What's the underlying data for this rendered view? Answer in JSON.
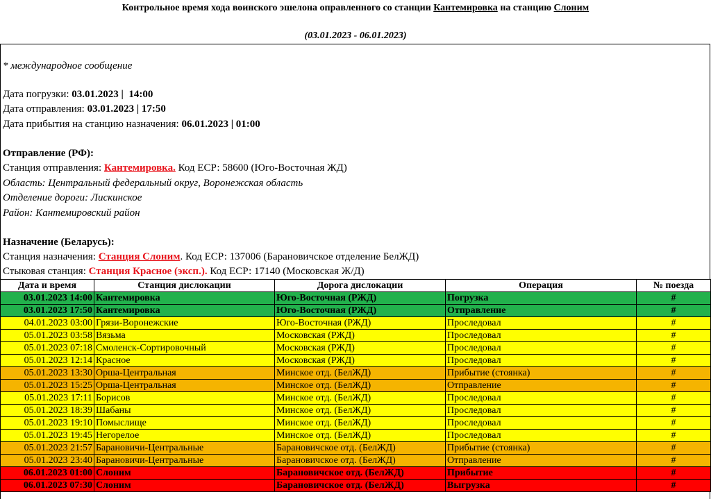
{
  "header": {
    "title_prefix": "Контрольное время хода воинского эшелона оправленного со станции",
    "title_from": "Кантемировка",
    "title_middle": "на станцию",
    "title_to": "Слоним",
    "period": "(03.01.2023 - 06.01.2023)"
  },
  "note": "* международное сообщение",
  "dates": [
    {
      "label": "Дата погрузки:",
      "value": "03.01.2023 |  14:00"
    },
    {
      "label": "Дата отправления:",
      "value": "03.01.2023 | 17:50"
    },
    {
      "label": "Дата прибытия на станцию назначения:",
      "value": "06.01.2023 | 01:00"
    }
  ],
  "departure": {
    "heading": "Отправление (РФ):",
    "station_label": "Станция отправления:",
    "station": "Кантемировка.",
    "code": "Код ЕСР: 58600 (Юго-Восточная ЖД)",
    "region": "Область: Центральный федеральный округ, Воронежская область",
    "division": "Отделение дороги: Лискинское",
    "district": "Район: Кантемировский район"
  },
  "destination": {
    "heading": "Назначение (Беларусь):",
    "station_label": "Станция назначения:",
    "station": "Станция Слоним",
    "code": ". Код ЕСР: 137006 (Барановичское отделение БелЖД)",
    "junction_label": "Стыковая станция:",
    "junction": "Станция Красное (эксп.).",
    "junction_code": "Код ЕСР: 17140 (Московская Ж/Д)"
  },
  "table": {
    "columns": [
      "Дата и время",
      "Станция дислокации",
      "Дорога дислокации",
      "Операция",
      "№ поезда"
    ],
    "rows": [
      {
        "color": "#22b14c",
        "bold": true,
        "cells": [
          "03.01.2023 14:00",
          "Кантемировка",
          "Юго-Восточная (РЖД)",
          "Погрузка",
          "#"
        ]
      },
      {
        "color": "#22b14c",
        "bold": true,
        "cells": [
          "03.01.2023 17:50",
          "Кантемировка",
          "Юго-Восточная (РЖД)",
          "Отправление",
          "#"
        ]
      },
      {
        "color": "#ffff00",
        "bold": false,
        "cells": [
          "04.01.2023 03:00",
          "Грязи-Воронежские",
          "Юго-Восточная (РЖД)",
          "Проследовал",
          "#"
        ]
      },
      {
        "color": "#ffff00",
        "bold": false,
        "cells": [
          "05.01.2023 03:58",
          "Вязьма",
          "Московская (РЖД)",
          "Проследовал",
          "#"
        ]
      },
      {
        "color": "#ffff00",
        "bold": false,
        "cells": [
          "05.01.2023 07:18",
          "Смоленск-Сортировочный",
          "Московская (РЖД)",
          "Проследовал",
          "#"
        ]
      },
      {
        "color": "#ffff00",
        "bold": false,
        "cells": [
          "05.01.2023 12:14",
          "Красное",
          "Московская (РЖД)",
          "Проследовал",
          "#"
        ]
      },
      {
        "color": "#f5b400",
        "bold": false,
        "cells": [
          "05.01.2023 13:30",
          "Орша-Центральная",
          "Минское отд. (БелЖД)",
          "Прибытие (стоянка)",
          "#"
        ]
      },
      {
        "color": "#f5b400",
        "bold": false,
        "cells": [
          "05.01.2023 15:25",
          "Орша-Центральная",
          "Минское отд. (БелЖД)",
          "Отправление",
          "#"
        ]
      },
      {
        "color": "#ffff00",
        "bold": false,
        "cells": [
          "05.01.2023 17:11",
          "Борисов",
          "Минское отд. (БелЖД)",
          "Проследовал",
          "#"
        ]
      },
      {
        "color": "#ffff00",
        "bold": false,
        "cells": [
          "05.01.2023 18:39",
          "Шабаны",
          "Минское отд. (БелЖД)",
          "Проследовал",
          "#"
        ]
      },
      {
        "color": "#ffff00",
        "bold": false,
        "cells": [
          "05.01.2023 19:10",
          "Помыслище",
          "Минское отд. (БелЖД)",
          "Проследовал",
          "#"
        ]
      },
      {
        "color": "#ffff00",
        "bold": false,
        "cells": [
          "05.01.2023 19:45",
          "Негорелое",
          "Минское отд. (БелЖД)",
          "Проследовал",
          "#"
        ]
      },
      {
        "color": "#f5b400",
        "bold": false,
        "cells": [
          "05.01.2023 21:57",
          "Барановичи-Центральные",
          "Барановичское отд. (БелЖД)",
          "Прибытие (стоянка)",
          "#"
        ]
      },
      {
        "color": "#f5b400",
        "bold": false,
        "cells": [
          "05.01.2023 23:40",
          "Барановичи-Центральные",
          "Барановичское отд. (БелЖД)",
          "Отправление",
          "#"
        ]
      },
      {
        "color": "#ff0000",
        "bold": true,
        "cells": [
          "06.01.2023 01:00",
          "Слоним",
          "Барановичское отд. (БелЖД)",
          "Прибытие",
          "#"
        ]
      },
      {
        "color": "#ff0000",
        "bold": true,
        "cells": [
          "06.01.2023 07:30",
          "Слоним",
          "Барановичское отд. (БелЖД)",
          "Выгрузка",
          "#"
        ]
      }
    ]
  }
}
